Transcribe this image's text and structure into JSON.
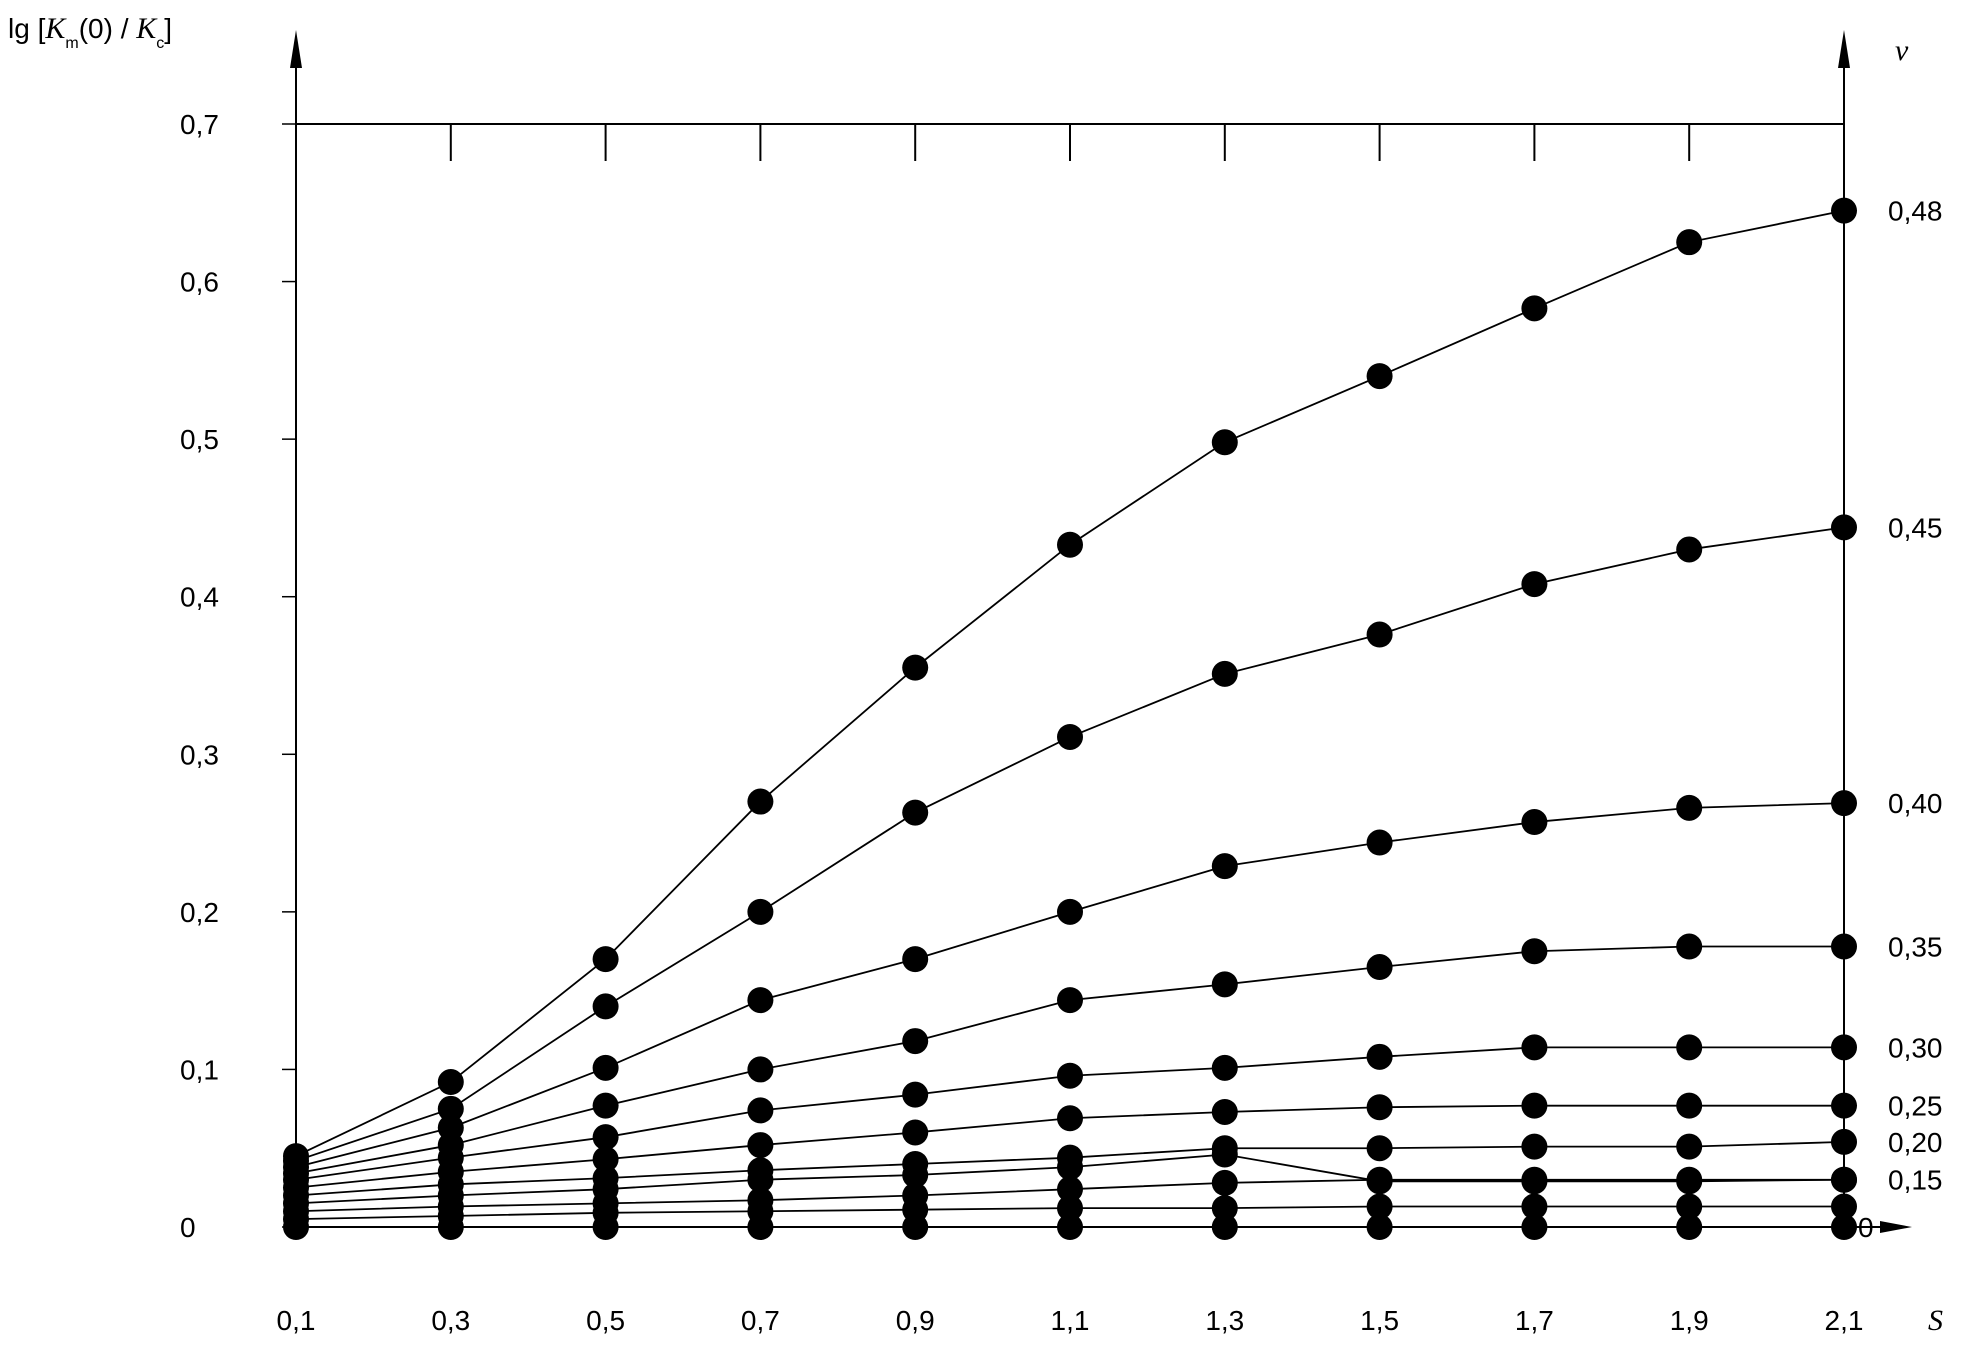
{
  "chart_data": {
    "type": "line",
    "ylabel_prefix": "lg [",
    "ylabel_k1": "K",
    "ylabel_sub1": "m",
    "ylabel_mid": "(0) / ",
    "ylabel_k2": "K",
    "ylabel_sub2": "c",
    "ylabel_suffix": "]",
    "xlabel": "S",
    "right_axis_label": "ν",
    "x": [
      0.1,
      0.3,
      0.5,
      0.7,
      0.9,
      1.1,
      1.3,
      1.5,
      1.7,
      1.9,
      2.1
    ],
    "x_tick_labels": [
      "0,1",
      "0,3",
      "0,5",
      "0,7",
      "0,9",
      "1,1",
      "1,3",
      "1,5",
      "1,7",
      "1,9",
      "2,1"
    ],
    "y_ticks": [
      0,
      0.1,
      0.2,
      0.3,
      0.4,
      0.5,
      0.6,
      0.7
    ],
    "y_tick_labels": [
      "0",
      "0,1",
      "0,2",
      "0,3",
      "0,4",
      "0,5",
      "0,6",
      "0,7"
    ],
    "xlim": [
      0.1,
      2.1
    ],
    "ylim": [
      0,
      0.7
    ],
    "grid": false,
    "series": [
      {
        "name": "0,48",
        "values": [
          0.045,
          0.092,
          0.17,
          0.27,
          0.355,
          0.433,
          0.498,
          0.54,
          0.583,
          0.625,
          0.645
        ]
      },
      {
        "name": "0,45",
        "values": [
          0.042,
          0.075,
          0.14,
          0.2,
          0.263,
          0.311,
          0.351,
          0.376,
          0.408,
          0.43,
          0.444
        ]
      },
      {
        "name": "0,40",
        "values": [
          0.038,
          0.063,
          0.101,
          0.144,
          0.17,
          0.2,
          0.229,
          0.244,
          0.257,
          0.266,
          0.269
        ]
      },
      {
        "name": "0,35",
        "values": [
          0.034,
          0.052,
          0.077,
          0.1,
          0.118,
          0.144,
          0.154,
          0.165,
          0.175,
          0.178,
          0.178
        ]
      },
      {
        "name": "0,30",
        "values": [
          0.03,
          0.044,
          0.057,
          0.074,
          0.084,
          0.096,
          0.101,
          0.108,
          0.114,
          0.114,
          0.114
        ]
      },
      {
        "name": "0,25",
        "values": [
          0.025,
          0.035,
          0.043,
          0.052,
          0.06,
          0.069,
          0.073,
          0.076,
          0.077,
          0.077,
          0.077
        ]
      },
      {
        "name": "0,20",
        "values": [
          0.02,
          0.027,
          0.031,
          0.036,
          0.04,
          0.044,
          0.05,
          0.05,
          0.051,
          0.051,
          0.054
        ]
      },
      {
        "name": "0,15",
        "values": [
          0.015,
          0.02,
          0.024,
          0.03,
          0.033,
          0.038,
          0.046,
          0.029,
          0.029,
          0.029,
          0.03
        ]
      },
      {
        "name": "",
        "values": [
          0.01,
          0.013,
          0.015,
          0.017,
          0.02,
          0.024,
          0.028,
          0.03,
          0.03,
          0.03,
          0.03
        ]
      },
      {
        "name": "",
        "values": [
          0.005,
          0.007,
          0.009,
          0.01,
          0.011,
          0.012,
          0.012,
          0.013,
          0.013,
          0.013,
          0.013
        ]
      },
      {
        "name": "0",
        "values": [
          0,
          0,
          0,
          0,
          0,
          0,
          0,
          0,
          0,
          0,
          0
        ]
      }
    ]
  }
}
